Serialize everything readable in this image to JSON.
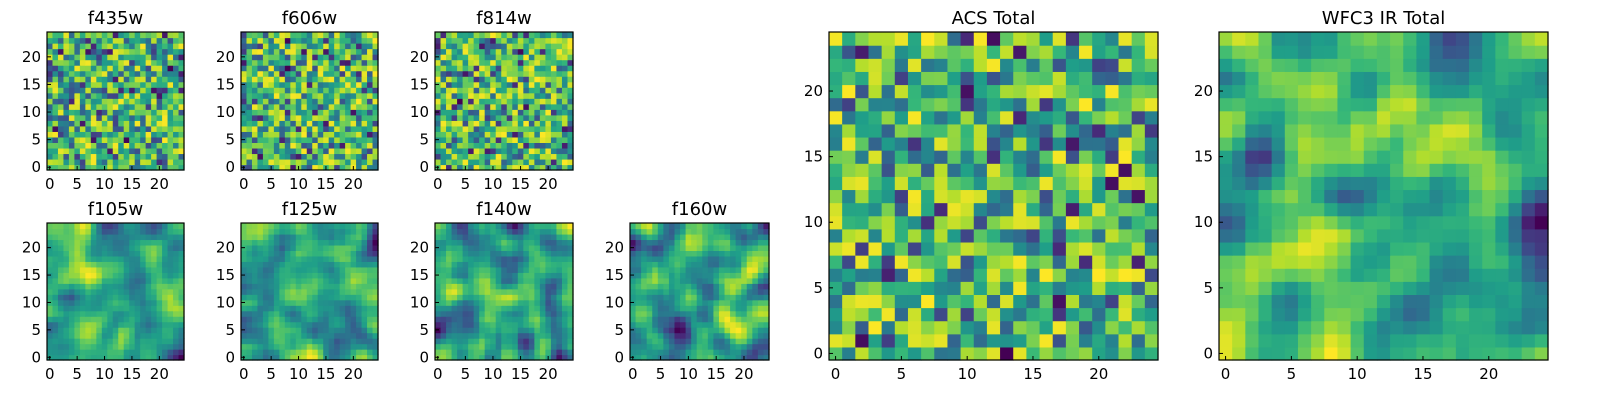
{
  "colors": {
    "colormap": "viridis",
    "axes_edge": "#000000",
    "background": "#ffffff"
  },
  "chart_data": [
    {
      "type": "heatmap",
      "title": "f435w",
      "pattern": "noise",
      "seed": 11,
      "grid": false,
      "xlim": [
        0,
        24
      ],
      "ylim": [
        0,
        24
      ],
      "xticks": [
        "0",
        "5",
        "10",
        "15",
        "20"
      ],
      "yticks": [
        "0",
        "5",
        "10",
        "15",
        "20"
      ]
    },
    {
      "type": "heatmap",
      "title": "f606w",
      "pattern": "noise",
      "seed": 23,
      "grid": false,
      "xlim": [
        0,
        24
      ],
      "ylim": [
        0,
        24
      ],
      "xticks": [
        "0",
        "5",
        "10",
        "15",
        "20"
      ],
      "yticks": [
        "0",
        "5",
        "10",
        "15",
        "20"
      ]
    },
    {
      "type": "heatmap",
      "title": "f814w",
      "pattern": "noise",
      "seed": 37,
      "grid": false,
      "xlim": [
        0,
        24
      ],
      "ylim": [
        0,
        24
      ],
      "xticks": [
        "0",
        "5",
        "10",
        "15",
        "20"
      ],
      "yticks": [
        "0",
        "5",
        "10",
        "15",
        "20"
      ]
    },
    {
      "type": "heatmap",
      "title": "f105w",
      "pattern": "smooth",
      "seed": 41,
      "grid": false,
      "xlim": [
        0,
        24
      ],
      "ylim": [
        0,
        24
      ],
      "xticks": [
        "0",
        "5",
        "10",
        "15",
        "20"
      ],
      "yticks": [
        "0",
        "5",
        "10",
        "15",
        "20"
      ]
    },
    {
      "type": "heatmap",
      "title": "f125w",
      "pattern": "smooth",
      "seed": 53,
      "grid": false,
      "xlim": [
        0,
        24
      ],
      "ylim": [
        0,
        24
      ],
      "xticks": [
        "0",
        "5",
        "10",
        "15",
        "20"
      ],
      "yticks": [
        "0",
        "5",
        "10",
        "15",
        "20"
      ]
    },
    {
      "type": "heatmap",
      "title": "f140w",
      "pattern": "smooth",
      "seed": 67,
      "grid": false,
      "xlim": [
        0,
        24
      ],
      "ylim": [
        0,
        24
      ],
      "xticks": [
        "0",
        "5",
        "10",
        "15",
        "20"
      ],
      "yticks": [
        "0",
        "5",
        "10",
        "15",
        "20"
      ]
    },
    {
      "type": "heatmap",
      "title": "f160w",
      "pattern": "smooth",
      "seed": 79,
      "grid": false,
      "xlim": [
        0,
        24
      ],
      "ylim": [
        0,
        24
      ],
      "xticks": [
        "0",
        "5",
        "10",
        "15",
        "20"
      ],
      "yticks": [
        "0",
        "5",
        "10",
        "15",
        "20"
      ]
    },
    {
      "type": "heatmap",
      "title": "ACS Total",
      "pattern": "noise",
      "seed": 97,
      "grid": false,
      "xlim": [
        0,
        24
      ],
      "ylim": [
        0,
        24
      ],
      "xticks": [
        "0",
        "5",
        "10",
        "15",
        "20"
      ],
      "yticks": [
        "0",
        "5",
        "10",
        "15",
        "20"
      ]
    },
    {
      "type": "heatmap",
      "title": "WFC3 IR Total",
      "pattern": "smooth",
      "seed": 113,
      "grid": false,
      "xlim": [
        0,
        24
      ],
      "ylim": [
        0,
        24
      ],
      "xticks": [
        "0",
        "5",
        "10",
        "15",
        "20"
      ],
      "yticks": [
        "0",
        "5",
        "10",
        "15",
        "20"
      ]
    }
  ]
}
